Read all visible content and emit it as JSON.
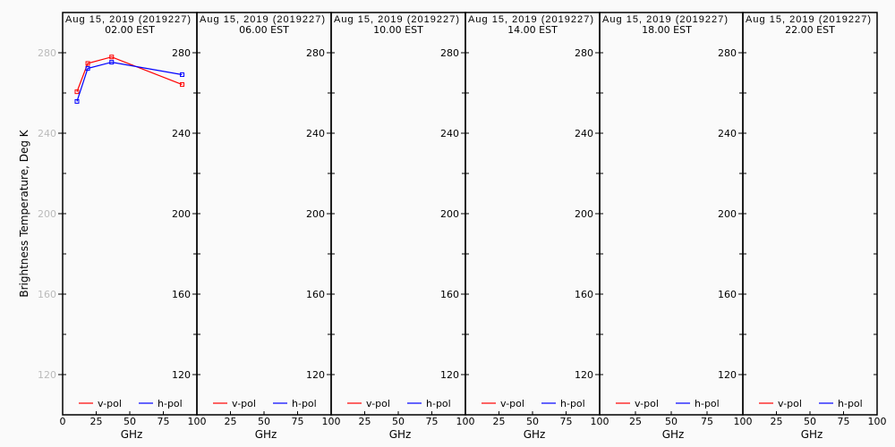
{
  "chart_data": {
    "type": "line",
    "ylabel": "Brightness Temperature, Deg K",
    "xlabel": "GHz",
    "ylim": [
      100,
      300
    ],
    "xlim": [
      0,
      100
    ],
    "yticks": [
      120,
      160,
      200,
      240,
      280
    ],
    "xticks": [
      "0",
      "25",
      "50",
      "75",
      "100"
    ],
    "legend_position": "bottom",
    "colors": {
      "v-pol": "#ff0000",
      "h-pol": "#0000ff"
    },
    "panels": [
      {
        "date": "Aug 15, 2019 (2019227)",
        "time": "02.00 EST",
        "series": [
          {
            "name": "v-pol",
            "x": [
              10.65,
              18.7,
              36.5,
              89.0
            ],
            "y": [
              260.6,
              274.7,
              277.9,
              264.2
            ]
          },
          {
            "name": "h-pol",
            "x": [
              10.65,
              18.7,
              36.5,
              89.0
            ],
            "y": [
              255.8,
              272.2,
              275.3,
              269.1
            ]
          }
        ]
      },
      {
        "date": "Aug 15, 2019 (2019227)",
        "time": "06.00 EST",
        "series": [
          {
            "name": "v-pol",
            "x": [],
            "y": []
          },
          {
            "name": "h-pol",
            "x": [],
            "y": []
          }
        ]
      },
      {
        "date": "Aug 15, 2019 (2019227)",
        "time": "10.00 EST",
        "series": [
          {
            "name": "v-pol",
            "x": [],
            "y": []
          },
          {
            "name": "h-pol",
            "x": [],
            "y": []
          }
        ]
      },
      {
        "date": "Aug 15, 2019 (2019227)",
        "time": "14.00 EST",
        "series": [
          {
            "name": "v-pol",
            "x": [],
            "y": []
          },
          {
            "name": "h-pol",
            "x": [],
            "y": []
          }
        ]
      },
      {
        "date": "Aug 15, 2019 (2019227)",
        "time": "18.00 EST",
        "series": [
          {
            "name": "v-pol",
            "x": [],
            "y": []
          },
          {
            "name": "h-pol",
            "x": [],
            "y": []
          }
        ]
      },
      {
        "date": "Aug 15, 2019 (2019227)",
        "time": "22.00 EST",
        "series": [
          {
            "name": "v-pol",
            "x": [],
            "y": []
          },
          {
            "name": "h-pol",
            "x": [],
            "y": []
          }
        ]
      }
    ]
  }
}
